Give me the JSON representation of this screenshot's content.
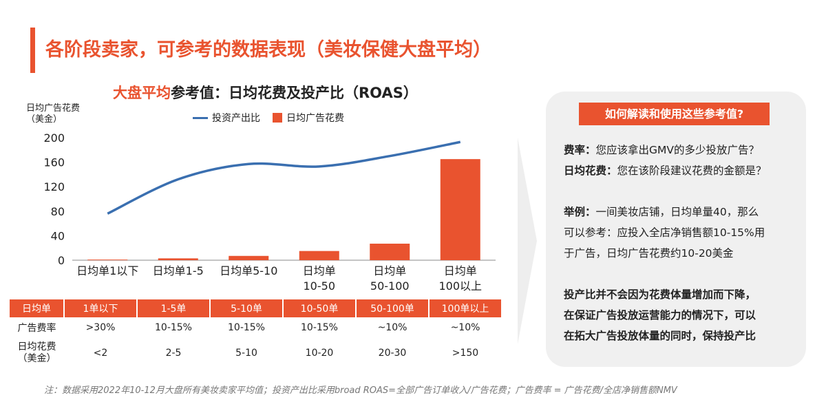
{
  "page": {
    "title": "各阶段卖家，可参考的数据表现（美妆保健大盘平均）",
    "footnote": "注：数据采用2022年10-12月大盘所有美妆卖家平均值；投资产出比采用broad ROAS=全部广告订单收入/广告花费；广告费率 = 广告花费/全店净销售额NMV"
  },
  "chart_title": {
    "highlight": "大盘平均",
    "rest": "参考值：日均花费及投产比（ROAS）"
  },
  "chart_data": {
    "type": "bar",
    "ylabel": "日均广告花费\n（美金）",
    "ylim": [
      0,
      200
    ],
    "yticks": [
      0,
      40,
      80,
      120,
      160,
      200
    ],
    "categories": [
      "日均单1以下",
      "日均单1-5",
      "日均单5-10",
      "日均单\n10-50",
      "日均单\n50-100",
      "日均单\n100以上"
    ],
    "series": [
      {
        "name": "日均广告花费",
        "kind": "bar",
        "values": [
          1,
          3,
          7,
          15,
          27,
          165
        ]
      },
      {
        "name": "投资产出比",
        "kind": "line",
        "values": [
          76,
          132,
          157,
          153,
          170,
          193
        ]
      }
    ],
    "legend_position": "top",
    "grid": false,
    "colors": {
      "bar": "#e9532f",
      "line": "#3a6fb0"
    }
  },
  "table": {
    "headers": [
      "日均单",
      "1单以下",
      "1-5单",
      "5-10单",
      "10-50单",
      "50-100单",
      "100单以上"
    ],
    "rows": [
      [
        "广告费率",
        ">30%",
        "10-15%",
        "10-15%",
        "10-15%",
        "~10%",
        "~10%"
      ],
      [
        "日均花费\n（美金）",
        "<2",
        "2-5",
        "5-10",
        "10-20",
        "20-30",
        ">150"
      ]
    ]
  },
  "panel": {
    "header": "如何解读和使用这些参考值?",
    "q1_label": "费率：",
    "q1_text": "您应该拿出GMV的多少投放广告？",
    "q2_label": "日均花费：",
    "q2_text": "您在该阶段建议花费的金额是？",
    "ex_label": "举例：",
    "ex_line1": "一间美妆店铺，日均单量40，那么",
    "ex_line2": "可以参考：应投入全店净销售额10-15%用",
    "ex_line3": "于广告，日均广告花费约10-20美金",
    "note_line1": "投产比并不会因为花费体量增加而下降，",
    "note_line2": "在保证广告投放运营能力的情况下，可以",
    "note_line3": "在拓大广告投放体量的同时，保持投产比"
  },
  "colors": {
    "accent": "#e9532f",
    "line": "#3a6fb0",
    "panel_bg": "#f0f0f0"
  }
}
